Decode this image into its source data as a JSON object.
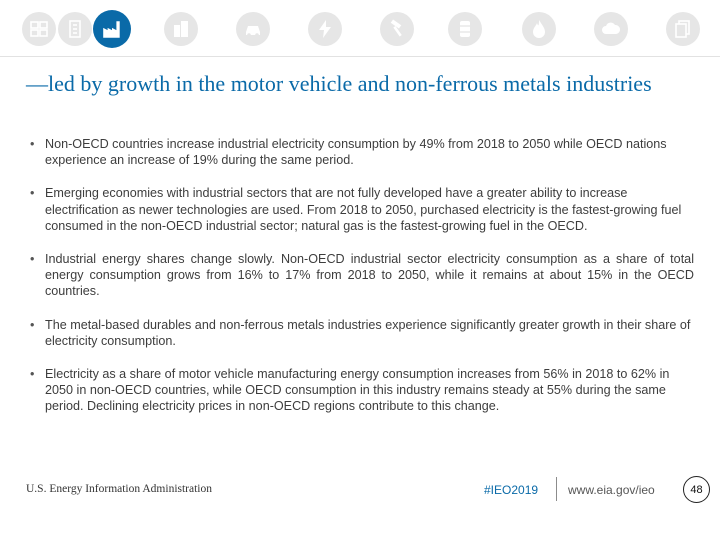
{
  "icon_bar": {
    "icons": [
      {
        "name": "residential-icon"
      },
      {
        "name": "commercial-icon"
      },
      {
        "name": "industrial-icon",
        "active": true
      },
      {
        "name": "buildings-icon"
      },
      {
        "name": "transportation-icon"
      },
      {
        "name": "electricity-icon"
      },
      {
        "name": "hammer-icon"
      },
      {
        "name": "oil-barrel-icon"
      },
      {
        "name": "natural-gas-flame-icon"
      },
      {
        "name": "co2-icon"
      },
      {
        "name": "documents-icon"
      }
    ],
    "colors": {
      "active": "#0a6aa8",
      "inactive": "#e6e6e6",
      "glyph": "#ffffff"
    }
  },
  "slide": {
    "title": "—led by growth in the motor vehicle and non-ferrous metals industries",
    "bullets": [
      "Non-OECD countries increase industrial electricity consumption by 49% from 2018 to 2050 while OECD nations experience an increase of 19% during the same period.",
      "Emerging economies with industrial sectors that are not fully developed have a greater ability to increase electrification as newer technologies are used. From 2018 to 2050, purchased electricity is the fastest-growing fuel consumed in the non-OECD industrial sector; natural gas is the fastest-growing fuel in the OECD.",
      "Industrial energy shares change slowly.  Non-OECD industrial sector electricity consumption as a share of total energy consumption grows from 16% to 17% from 2018 to 2050, while it remains at about 15% in the OECD countries.",
      "The metal-based durables and non-ferrous metals industries experience significantly greater growth in their share of electricity consumption.",
      "Electricity as a share of motor vehicle manufacturing energy consumption increases from 56% in 2018 to 62% in 2050 in non-OECD countries, while OECD consumption in this industry remains steady at 55% during the same period. Declining electricity prices in non-OECD regions contribute to this change."
    ]
  },
  "footer": {
    "organization": "U.S. Energy Information Administration",
    "hashtag": "#IEO2019",
    "url": "www.eia.gov/ieo",
    "page_number": "48"
  },
  "theme": {
    "accent": "#0a6aa8",
    "body_text": "#3d3d3d"
  }
}
